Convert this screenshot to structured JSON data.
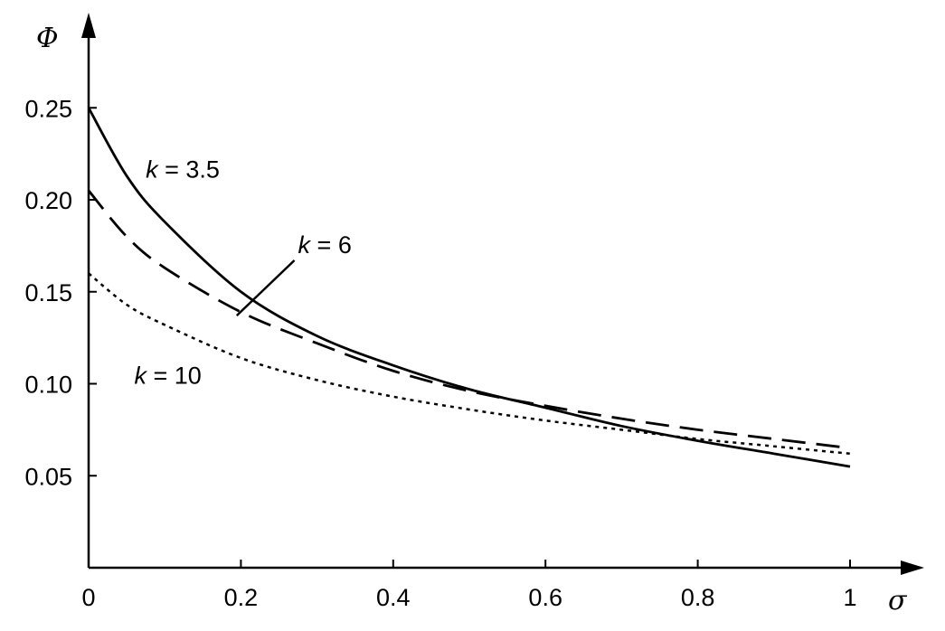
{
  "chart_data": {
    "type": "line",
    "xlabel": "σ",
    "ylabel": "Φ",
    "xlim": [
      0,
      1.03
    ],
    "ylim": [
      0,
      0.27
    ],
    "x_ticks": [
      0,
      0.2,
      0.4,
      0.6,
      0.8,
      1
    ],
    "x_tick_labels": [
      "0",
      "0.2",
      "0.4",
      "0.6",
      "0.8",
      "1"
    ],
    "y_ticks": [
      0.05,
      0.1,
      0.15,
      0.2,
      0.25
    ],
    "y_tick_labels": [
      "0.05",
      "0.10",
      "0.15",
      "0.20",
      "0.25"
    ],
    "grid": false,
    "legend": "none",
    "series": [
      {
        "name": "k = 3.5",
        "style": "solid",
        "color": "#000000",
        "x": [
          0,
          0.05,
          0.1,
          0.2,
          0.3,
          0.4,
          0.5,
          0.6,
          0.7,
          0.8,
          0.9,
          1.0
        ],
        "y": [
          0.25,
          0.213,
          0.188,
          0.15,
          0.126,
          0.11,
          0.097,
          0.087,
          0.077,
          0.069,
          0.062,
          0.055
        ]
      },
      {
        "name": "k = 6",
        "style": "dashed",
        "color": "#000000",
        "x": [
          0,
          0.05,
          0.1,
          0.2,
          0.3,
          0.4,
          0.5,
          0.6,
          0.7,
          0.8,
          0.9,
          1.0
        ],
        "y": [
          0.205,
          0.18,
          0.163,
          0.139,
          0.122,
          0.107,
          0.096,
          0.088,
          0.081,
          0.075,
          0.07,
          0.065
        ]
      },
      {
        "name": "k = 10",
        "style": "dotted",
        "color": "#000000",
        "x": [
          0,
          0.05,
          0.1,
          0.2,
          0.3,
          0.4,
          0.5,
          0.6,
          0.7,
          0.8,
          0.9,
          1.0
        ],
        "y": [
          0.16,
          0.143,
          0.132,
          0.114,
          0.102,
          0.093,
          0.086,
          0.08,
          0.075,
          0.07,
          0.066,
          0.062
        ]
      }
    ],
    "annotations": [
      {
        "series_name": "k = 3.5",
        "variable": "k",
        "value": "3.5",
        "x": 0.075,
        "y": 0.212
      },
      {
        "series_name": "k = 6",
        "variable": "k",
        "value": "6",
        "x": 0.275,
        "y": 0.171,
        "pointer_to": [
          0.185,
          0.139
        ]
      },
      {
        "series_name": "k = 10",
        "variable": "k",
        "value": "10",
        "x": 0.06,
        "y": 0.1
      }
    ]
  }
}
